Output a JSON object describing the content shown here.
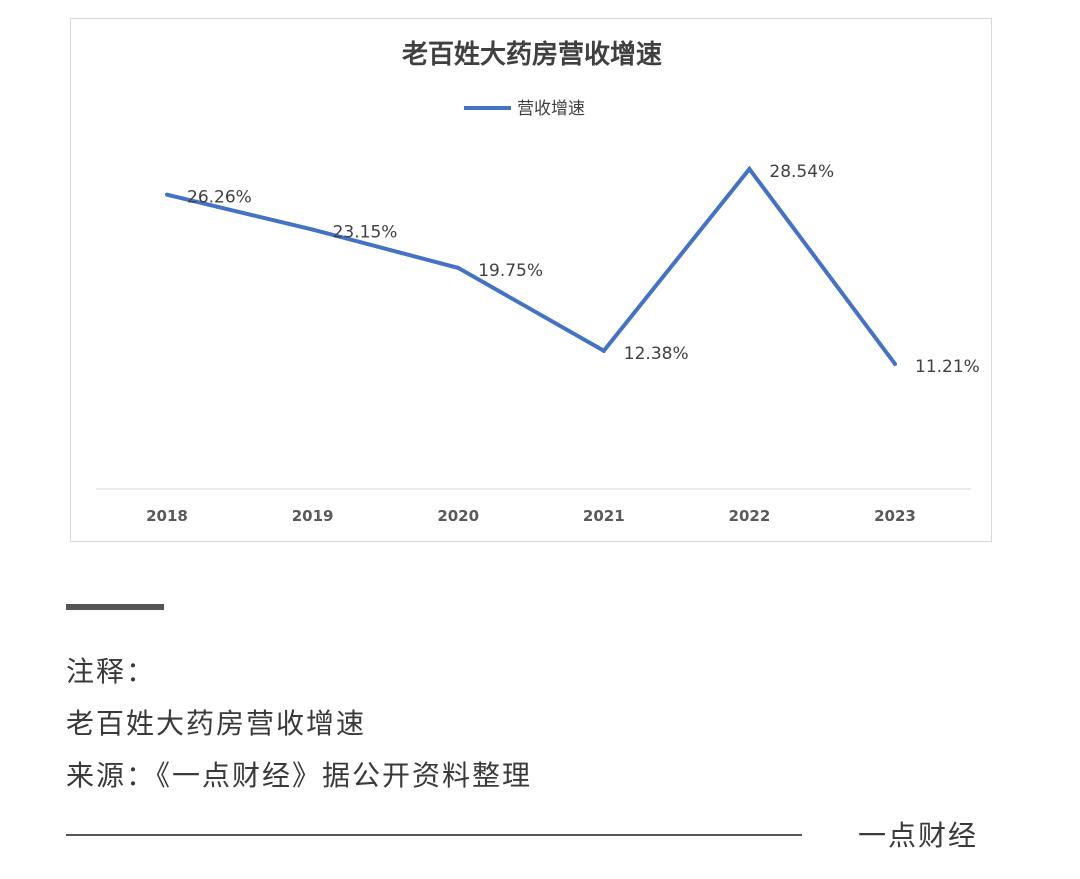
{
  "chart_data": {
    "type": "line",
    "title": "老百姓大药房营收增速",
    "categories": [
      "2018",
      "2019",
      "2020",
      "2021",
      "2022",
      "2023"
    ],
    "series": [
      {
        "name": "营收增速",
        "values": [
          26.26,
          23.15,
          19.75,
          12.38,
          28.54,
          11.21
        ],
        "labels": [
          "26.26%",
          "23.15%",
          "19.75%",
          "12.38%",
          "28.54%",
          "11.21%"
        ],
        "color": "#4472c4"
      }
    ],
    "xlabel": "",
    "ylabel": "",
    "ylim": [
      0,
      30
    ],
    "grid": false,
    "legend": "top"
  },
  "notes": {
    "heading": "注释：",
    "line1": "老百姓大药房营收增速",
    "line2": "来源：《一点财经》据公开资料整理"
  },
  "brand": "一点财经"
}
